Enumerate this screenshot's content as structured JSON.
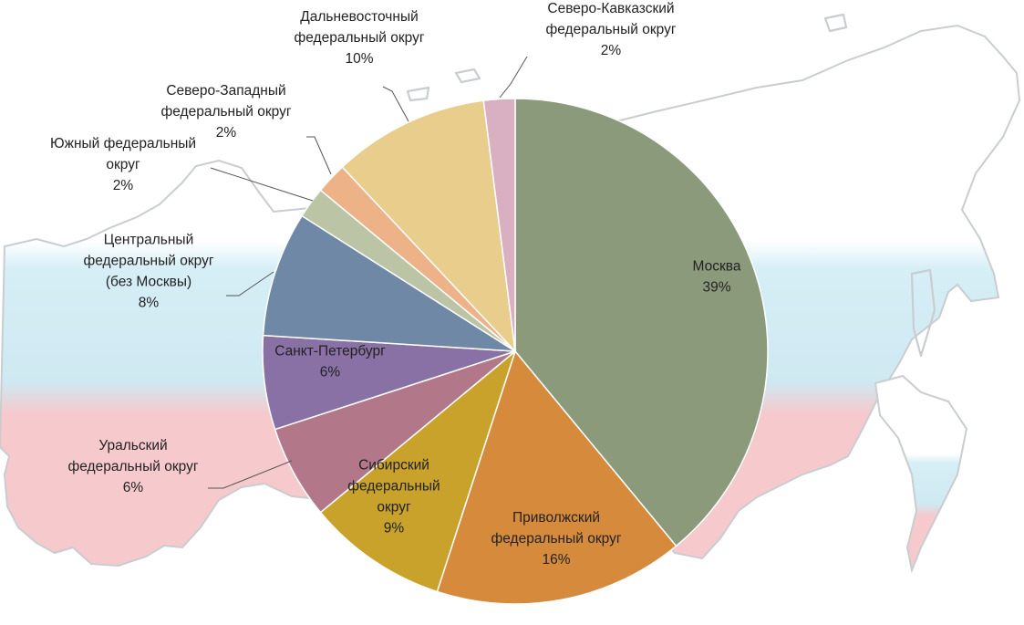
{
  "chart_data": {
    "type": "pie",
    "start_angle_deg": 0,
    "direction": "clockwise",
    "slices": [
      {
        "label": [
          "Москва"
        ],
        "pct_text": "39%",
        "value": 39,
        "color": "#8c9a7c"
      },
      {
        "label": [
          "Приволжский",
          "федеральный округ"
        ],
        "pct_text": "16%",
        "value": 16,
        "color": "#d68a3c"
      },
      {
        "label": [
          "Сибирский",
          "федеральный",
          "округ"
        ],
        "pct_text": "9%",
        "value": 9,
        "color": "#c8a22a"
      },
      {
        "label": [
          "Уральский",
          "федеральный округ"
        ],
        "pct_text": "6%",
        "value": 6,
        "color": "#b27889"
      },
      {
        "label": [
          "Санкт-Петербург"
        ],
        "pct_text": "6%",
        "value": 6,
        "color": "#8970a5"
      },
      {
        "label": [
          "Центральный",
          "федеральный округ",
          "(без Москвы)"
        ],
        "pct_text": "8%",
        "value": 8,
        "color": "#6e88a6"
      },
      {
        "label": [
          "Южный федеральный",
          "округ"
        ],
        "pct_text": "2%",
        "value": 2,
        "color": "#bcc4a6"
      },
      {
        "label": [
          "Северо-Западный",
          "федеральный округ"
        ],
        "pct_text": "2%",
        "value": 2,
        "color": "#eeb288"
      },
      {
        "label": [
          "Дальневосточный",
          "федеральный округ"
        ],
        "pct_text": "10%",
        "value": 10,
        "color": "#e8cd8c"
      },
      {
        "label": [
          "Северо-Кавказский",
          "федеральный округ"
        ],
        "pct_text": "2%",
        "value": 2,
        "color": "#d9b0c2"
      }
    ]
  },
  "background": {
    "map_colors": {
      "white_band": "#ffffff",
      "blue_band": "#cfeaf3",
      "red_band": "#f6c9cc",
      "outline": "#c9cdd0"
    }
  }
}
